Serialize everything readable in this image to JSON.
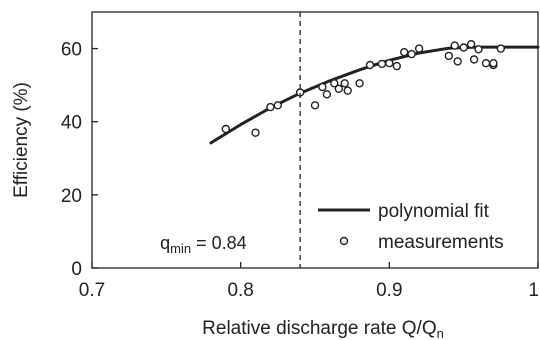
{
  "chart_data": {
    "type": "scatter",
    "xlabel": "Relative discharge rate Q/Q",
    "xlabel_sub": "n",
    "ylabel": "Efficiency (%)",
    "xlim": [
      0.7,
      1.0
    ],
    "ylim": [
      0,
      70
    ],
    "xticks": [
      0.7,
      0.8,
      0.9,
      1.0
    ],
    "xtick_labels": [
      "0.7",
      "0.8",
      "0.9",
      "1"
    ],
    "yticks": [
      0,
      20,
      40,
      60
    ],
    "ytick_labels": [
      "0",
      "20",
      "40",
      "60"
    ],
    "grid": false,
    "legend_position": "bottom-right",
    "series": [
      {
        "name": "polynomial fit",
        "kind": "line",
        "x": [
          0.78,
          0.8,
          0.82,
          0.84,
          0.86,
          0.88,
          0.9,
          0.92,
          0.94,
          0.95,
          0.96,
          0.98,
          1.0
        ],
        "y": [
          34.2,
          39.2,
          43.8,
          47.8,
          51.2,
          54.2,
          56.8,
          58.8,
          60.1,
          60.3,
          60.4,
          60.4,
          60.4
        ]
      },
      {
        "name": "measurements",
        "kind": "scatter",
        "x": [
          0.79,
          0.81,
          0.82,
          0.825,
          0.84,
          0.85,
          0.855,
          0.858,
          0.863,
          0.866,
          0.87,
          0.872,
          0.88,
          0.887,
          0.895,
          0.9,
          0.905,
          0.91,
          0.915,
          0.92,
          0.94,
          0.944,
          0.946,
          0.95,
          0.955,
          0.957,
          0.96,
          0.965,
          0.97,
          0.97,
          0.975
        ],
        "y": [
          38,
          37,
          44,
          44.5,
          48,
          44.5,
          49.5,
          47.5,
          50.5,
          49,
          50.5,
          48.5,
          50.5,
          55.5,
          55.8,
          56,
          55.2,
          59,
          58.5,
          60,
          58,
          60.8,
          56.5,
          60.3,
          61.2,
          57,
          59.8,
          56,
          55.5,
          56,
          60
        ]
      }
    ],
    "annotation": {
      "text_main": "q",
      "text_sub": "min",
      "text_rest": " = 0.84",
      "x": 0.84
    }
  }
}
